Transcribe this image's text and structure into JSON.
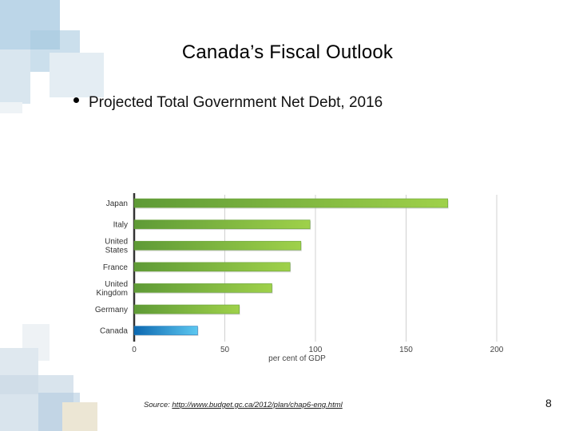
{
  "slide": {
    "title": "Canada’s Fiscal Outlook",
    "bullet": "Projected Total Government Net Debt, 2016",
    "source_prefix": "Source: ",
    "source_link": "http://www.budget.gc.ca/2012/plan/chap6-eng.html",
    "page_number": "8"
  },
  "colors": {
    "green_bar": "#8cc63f",
    "canada_bar": "#3a9fd8",
    "axis": "#333333",
    "grid": "#d0d0d0"
  },
  "chart_data": {
    "type": "bar",
    "orientation": "horizontal",
    "title": "",
    "xlabel": "per cent of GDP",
    "ylabel": "",
    "categories": [
      [
        "Japan"
      ],
      [
        "Italy"
      ],
      [
        "United",
        "States"
      ],
      [
        "France"
      ],
      [
        "United",
        "Kingdom"
      ],
      [
        "Germany"
      ],
      [
        "Canada"
      ]
    ],
    "values": [
      173,
      97,
      92,
      86,
      76,
      58,
      35
    ],
    "xlim": [
      0,
      200
    ],
    "xticks": [
      0,
      50,
      100,
      150,
      200
    ],
    "grid": true
  }
}
